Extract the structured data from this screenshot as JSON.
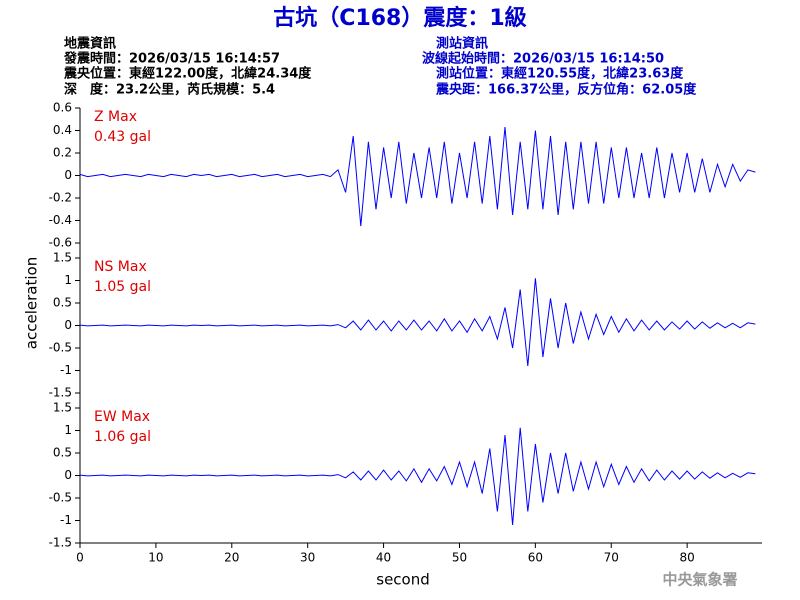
{
  "header": {
    "title": "古坑（C168）震度：1級",
    "left": [
      "地震資訊",
      "發震時間：2026/03/15 16:14:57",
      "震央位置：東經122.00度，北緯24.34度",
      "深　度：23.2公里，芮氏規模：5.4"
    ],
    "right": [
      "測站資訊",
      "波線起始時間：2026/03/15 16:14:50",
      "測站位置：東經120.55度，北緯23.63度",
      "震央距：166.37公里，反方位角：62.05度"
    ],
    "footer": "中央氣象署"
  },
  "chart_data": {
    "type": "line",
    "xlabel": "second",
    "ylabel": "acceleration",
    "x": [
      0,
      1,
      2,
      3,
      4,
      5,
      6,
      7,
      8,
      9,
      10,
      11,
      12,
      13,
      14,
      15,
      16,
      17,
      18,
      19,
      20,
      21,
      22,
      23,
      24,
      25,
      26,
      27,
      28,
      29,
      30,
      31,
      32,
      33,
      34,
      35,
      36,
      37,
      38,
      39,
      40,
      41,
      42,
      43,
      44,
      45,
      46,
      47,
      48,
      49,
      50,
      51,
      52,
      53,
      54,
      55,
      56,
      57,
      58,
      59,
      60,
      61,
      62,
      63,
      64,
      65,
      66,
      67,
      68,
      69,
      70,
      71,
      72,
      73,
      74,
      75,
      76,
      77,
      78,
      79,
      80,
      81,
      82,
      83,
      84,
      85,
      86,
      87,
      88,
      89
    ],
    "xlim": [
      0,
      89.6
    ],
    "xticks": [
      0,
      10,
      20,
      30,
      40,
      50,
      60,
      70,
      80
    ],
    "panels": [
      {
        "name": "Z Max",
        "annotation": "0.43 gal",
        "color": "#0000ff",
        "ylim": [
          -0.6,
          0.6
        ],
        "yticks": [
          0.6,
          0.4,
          0.2,
          0,
          -0.2,
          -0.4,
          -0.6
        ],
        "values": [
          0.01,
          -0.01,
          0,
          0.01,
          -0.01,
          0,
          0.01,
          0,
          -0.01,
          0.01,
          0,
          -0.01,
          0.01,
          0,
          -0.01,
          0.01,
          0,
          0.01,
          -0.01,
          0,
          0.01,
          -0.01,
          0,
          0.01,
          -0.01,
          0,
          0.01,
          -0.01,
          0,
          0.01,
          -0.01,
          0,
          0.01,
          -0.01,
          0.05,
          -0.15,
          0.35,
          -0.45,
          0.3,
          -0.3,
          0.25,
          -0.2,
          0.3,
          -0.25,
          0.2,
          -0.2,
          0.25,
          -0.2,
          0.3,
          -0.25,
          0.2,
          -0.2,
          0.3,
          -0.25,
          0.35,
          -0.3,
          0.43,
          -0.35,
          0.3,
          -0.3,
          0.4,
          -0.3,
          0.35,
          -0.35,
          0.3,
          -0.3,
          0.3,
          -0.25,
          0.3,
          -0.25,
          0.25,
          -0.2,
          0.25,
          -0.2,
          0.2,
          -0.2,
          0.25,
          -0.2,
          0.2,
          -0.15,
          0.2,
          -0.15,
          0.15,
          -0.15,
          0.1,
          -0.1,
          0.1,
          -0.05,
          0.05,
          0.03
        ]
      },
      {
        "name": "NS Max",
        "annotation": "1.05 gal",
        "color": "#0000ff",
        "ylim": [
          -1.5,
          1.5
        ],
        "yticks": [
          1.5,
          1,
          0.5,
          0,
          -0.5,
          -1,
          -1.5
        ],
        "values": [
          0.01,
          -0.01,
          0,
          0.01,
          -0.01,
          0,
          0.01,
          0,
          -0.01,
          0.01,
          0,
          -0.01,
          0.01,
          0,
          -0.01,
          0.01,
          0,
          0.01,
          -0.01,
          0,
          0.01,
          -0.01,
          0,
          0.01,
          -0.01,
          0,
          0.01,
          -0.01,
          0,
          0.01,
          -0.01,
          0,
          0.01,
          -0.01,
          0.02,
          -0.05,
          0.1,
          -0.1,
          0.12,
          -0.1,
          0.1,
          -0.12,
          0.1,
          -0.1,
          0.12,
          -0.1,
          0.1,
          -0.12,
          0.15,
          -0.12,
          0.1,
          -0.15,
          0.15,
          -0.12,
          0.2,
          -0.3,
          0.4,
          -0.5,
          0.8,
          -0.9,
          1.05,
          -0.7,
          0.6,
          -0.5,
          0.5,
          -0.4,
          0.3,
          -0.3,
          0.25,
          -0.2,
          0.2,
          -0.15,
          0.15,
          -0.12,
          0.12,
          -0.1,
          0.1,
          -0.1,
          0.08,
          -0.08,
          0.1,
          -0.08,
          0.08,
          -0.06,
          0.06,
          -0.05,
          0.05,
          -0.05,
          0.06,
          0.03
        ]
      },
      {
        "name": "EW Max",
        "annotation": "1.06 gal",
        "color": "#0000ff",
        "ylim": [
          -1.5,
          1.5
        ],
        "yticks": [
          1.5,
          1,
          0.5,
          0,
          -0.5,
          -1,
          -1.5
        ],
        "values": [
          0.01,
          -0.01,
          0,
          0.01,
          -0.01,
          0,
          0.01,
          0,
          -0.01,
          0.01,
          0,
          -0.01,
          0.01,
          0,
          -0.01,
          0.01,
          0,
          0.01,
          -0.01,
          0,
          0.01,
          -0.01,
          0,
          0.01,
          -0.01,
          0,
          0.01,
          -0.01,
          0,
          0.01,
          -0.01,
          0,
          0.01,
          -0.01,
          0.02,
          -0.05,
          0.08,
          -0.1,
          0.1,
          -0.1,
          0.12,
          -0.1,
          0.1,
          -0.12,
          0.15,
          -0.15,
          0.15,
          -0.12,
          0.2,
          -0.2,
          0.3,
          -0.25,
          0.3,
          -0.4,
          0.6,
          -0.8,
          0.9,
          -1.1,
          1.06,
          -0.8,
          0.7,
          -0.6,
          0.5,
          -0.4,
          0.5,
          -0.35,
          0.3,
          -0.3,
          0.3,
          -0.25,
          0.25,
          -0.2,
          0.2,
          -0.15,
          0.15,
          -0.12,
          0.12,
          -0.1,
          0.1,
          -0.08,
          0.1,
          -0.08,
          0.08,
          -0.06,
          0.06,
          -0.05,
          0.05,
          -0.04,
          0.06,
          0.04
        ]
      }
    ]
  }
}
